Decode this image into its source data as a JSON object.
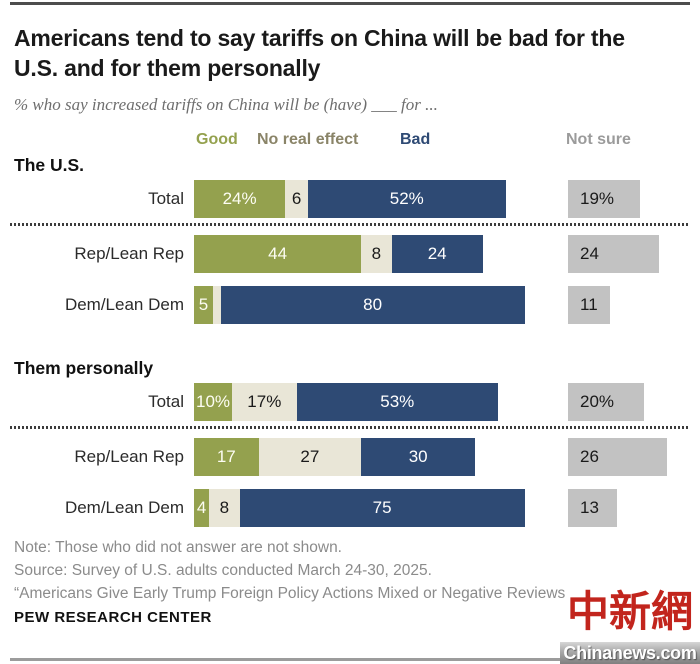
{
  "header": {
    "title": "Americans tend to say tariffs on China will be bad for the U.S. and for them personally",
    "subtitle": "% who say increased tariffs on China will be (have) ___ for ..."
  },
  "legend": {
    "good": "Good",
    "no_effect": "No real effect",
    "bad": "Bad",
    "not_sure": "Not sure"
  },
  "colors": {
    "good": "#94a14e",
    "no_effect": "#e9e6d7",
    "bad": "#2e4a74",
    "not_sure": "#c2c2c2",
    "legend_no_effect_text": "#8a8468",
    "legend_not_sure_text": "#9b9b9b",
    "seg_text_good": "#fdfdf3",
    "seg_text_no_effect": "#1a1a1a",
    "seg_text_bad": "#ffffff"
  },
  "chart_data": {
    "type": "bar",
    "orientation": "horizontal",
    "stacked": true,
    "unit": "percent",
    "categories_legend": [
      "Good",
      "No real effect",
      "Bad",
      "Not sure"
    ],
    "sections": [
      {
        "label": "The U.S.",
        "rows": [
          {
            "label": "Total",
            "segments": [
              {
                "key": "good",
                "value": 24,
                "label": "24%"
              },
              {
                "key": "no_effect",
                "value": 6,
                "label": "6"
              },
              {
                "key": "bad",
                "value": 52,
                "label": "52%"
              }
            ],
            "not_sure": {
              "value": 19,
              "label": "19%"
            }
          },
          {
            "label": "Rep/Lean Rep",
            "segments": [
              {
                "key": "good",
                "value": 44,
                "label": "44"
              },
              {
                "key": "no_effect",
                "value": 8,
                "label": "8"
              },
              {
                "key": "bad",
                "value": 24,
                "label": "24"
              }
            ],
            "not_sure": {
              "value": 24,
              "label": "24"
            }
          },
          {
            "label": "Dem/Lean Dem",
            "segments": [
              {
                "key": "good",
                "value": 5,
                "label": "5"
              },
              {
                "key": "no_effect",
                "value": 2,
                "label": ""
              },
              {
                "key": "bad",
                "value": 80,
                "label": "80"
              }
            ],
            "not_sure": {
              "value": 11,
              "label": "11"
            }
          }
        ]
      },
      {
        "label": "Them personally",
        "rows": [
          {
            "label": "Total",
            "segments": [
              {
                "key": "good",
                "value": 10,
                "label": "10%"
              },
              {
                "key": "no_effect",
                "value": 17,
                "label": "17%"
              },
              {
                "key": "bad",
                "value": 53,
                "label": "53%"
              }
            ],
            "not_sure": {
              "value": 20,
              "label": "20%"
            }
          },
          {
            "label": "Rep/Lean Rep",
            "segments": [
              {
                "key": "good",
                "value": 17,
                "label": "17"
              },
              {
                "key": "no_effect",
                "value": 27,
                "label": "27"
              },
              {
                "key": "bad",
                "value": 30,
                "label": "30"
              }
            ],
            "not_sure": {
              "value": 26,
              "label": "26"
            }
          },
          {
            "label": "Dem/Lean Dem",
            "segments": [
              {
                "key": "good",
                "value": 4,
                "label": "4"
              },
              {
                "key": "no_effect",
                "value": 8,
                "label": "8"
              },
              {
                "key": "bad",
                "value": 75,
                "label": "75"
              }
            ],
            "not_sure": {
              "value": 13,
              "label": "13"
            }
          }
        ]
      }
    ]
  },
  "footer": {
    "note": "Note: Those who did not answer are not shown.",
    "source": "Source: Survey of U.S. adults conducted March 24-30, 2025.",
    "report": "“Americans Give Early Trump Foreign Policy Actions Mixed or Negative Reviews",
    "brand": "PEW RESEARCH CENTER"
  },
  "watermark": {
    "cn": "中新網",
    "domain": "Chinanews.com"
  }
}
